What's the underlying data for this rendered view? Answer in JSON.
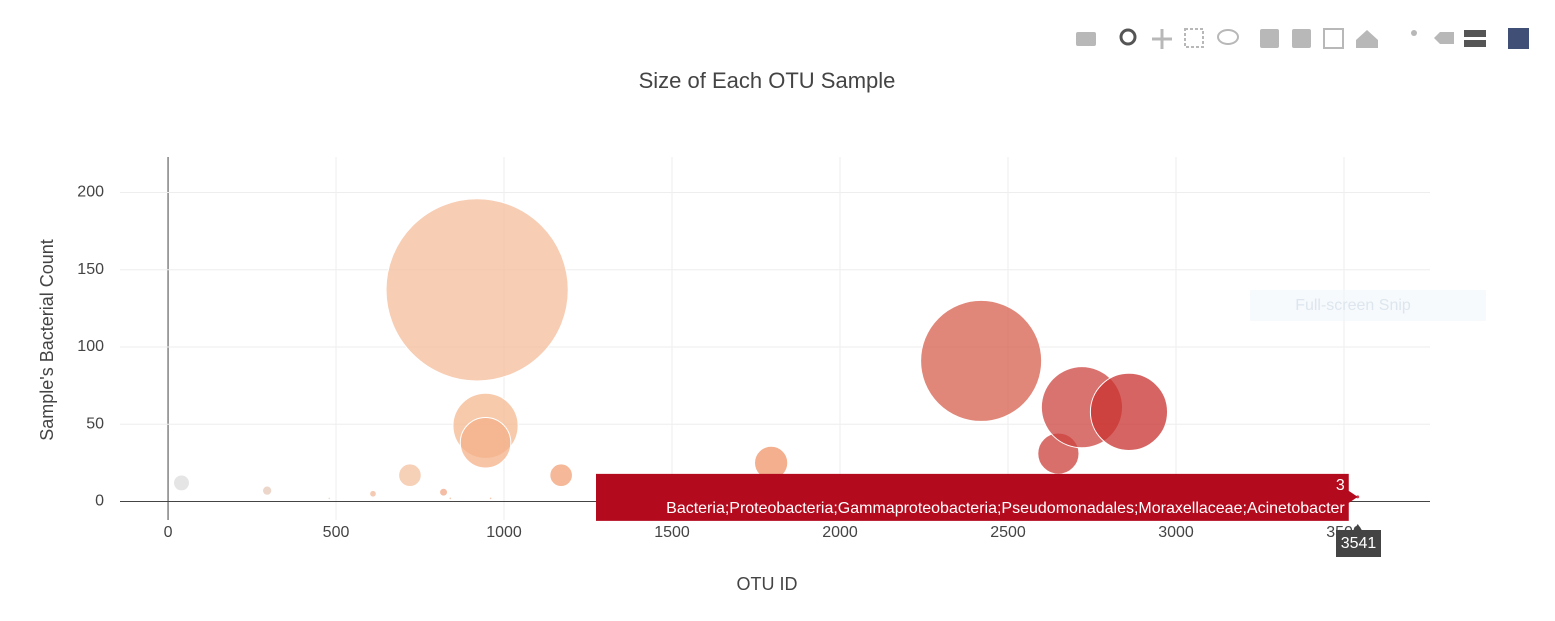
{
  "chart_data": {
    "type": "bubble",
    "title": "Size of Each OTU Sample",
    "x_label": "OTU ID",
    "y_label": "Sample's Bacterial Count",
    "x": [
      40,
      295,
      480,
      610,
      720,
      820,
      840,
      920,
      945,
      945,
      960,
      1170,
      1795,
      2420,
      2650,
      2720,
      2860,
      3541
    ],
    "y": [
      12,
      7,
      2,
      5,
      17,
      6,
      2,
      137,
      49,
      38,
      2,
      17,
      25,
      91,
      31,
      61,
      58,
      3
    ],
    "sizes": [
      12,
      7,
      2,
      5,
      17,
      6,
      2,
      137,
      49,
      38,
      2,
      17,
      25,
      91,
      31,
      61,
      58,
      3
    ],
    "colors": [
      "#dcdcdc",
      "#e6c8b8",
      "#ead2c4",
      "#f0b898",
      "#f4c0a0",
      "#f0a888",
      "#f0b898",
      "#f4bc9a",
      "#f4b890",
      "#f4b088",
      "#f4b898",
      "#f2a077",
      "#ef9468",
      "#d65f4e",
      "#cc3f3a",
      "#cc4440",
      "#c8302e",
      "#b40a1e"
    ],
    "xlim": [
      -143,
      3756
    ],
    "ylim": [
      -12,
      223
    ],
    "xticks": [
      0,
      500,
      1000,
      1500,
      2000,
      2500,
      3000,
      3500
    ],
    "yticks": [
      0,
      50,
      100,
      150,
      200
    ],
    "grid": true,
    "hover_text": "Bacteria;Proteobacteria;Gammaproteobacteria;Pseudomonadales;Moraxellaceae;Acinetobacter",
    "overlay_text": "Full-screen Snip"
  }
}
